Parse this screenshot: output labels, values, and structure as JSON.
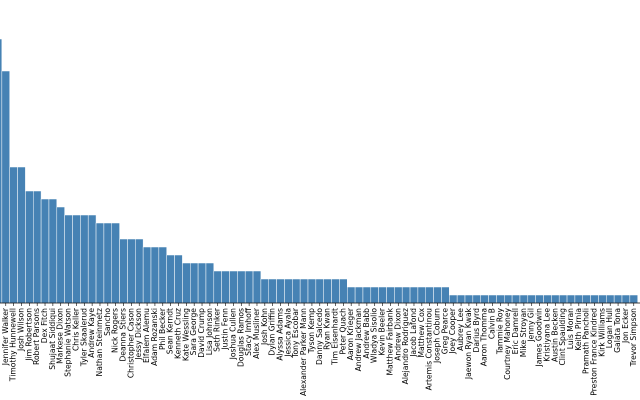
{
  "chart_data": {
    "type": "bar",
    "color": "#4682b4",
    "categories": [
      null,
      "Jennifer Walker",
      "Timothy Hunnewell",
      "Josh Wilson",
      "Jim Robertson",
      "Robert Parsons",
      "Dex Fitch",
      "Shujaat Siddiqui",
      "Markese Dixon",
      "Stephanie Watson",
      "Chris Keller",
      "Tyler Skaalerud",
      "Andrew Kaye",
      "Nathan Steinmetz",
      "Sancho",
      "Nick Rogers",
      "Deanna Stiers",
      "Christopher Cason",
      "Jessy Dickson",
      "Elfalem Alemu",
      "Adam Rozanski",
      "Phil Becker",
      "Sean Kerndt",
      "Kenneth Cruz",
      "Kate Wessling",
      "Sara George",
      "David Crump",
      "Lisa Johnson",
      "Seth Rinker",
      "Justin Fenn",
      "Joshua Cullen",
      "Douglas Ramos",
      "Stacy Imhoff",
      "Alex Musliner",
      "Josh Kohn",
      "Dylan Griffin",
      "Alyssa Adams",
      "Jessica Ayala",
      "Tony Escobar",
      "Alexander Parker Mann",
      "Tyson Kemp",
      "Danny Salcedo",
      "Ryan Kwan",
      "Tim Eisenhardt",
      "Peter Quach",
      "Aaron Krieger",
      "Andrew Jackman",
      "Andrew Babb",
      "Wladya Sisolio",
      "Kevin Beeler",
      "Matthew Fairbank",
      "Andrew Dixon",
      "Alejandro Rodriguez",
      "Jacob Lafond",
      "Matthew Cox",
      "Artemis Constantinou",
      "Joseph Coburn",
      "Greg Pearce",
      "Joey Cooper",
      "Aubrey Lee",
      "Jaewon Ryan Kwak",
      "Darius Byrd",
      "Aaron Thomma",
      "Calvin B",
      "Tammie Roy",
      "Courtney Mahoney",
      "Eric Damrell",
      "Mike Stroyan",
      "Jenny Gil",
      "James Goodwin",
      "Kristiyana Lee",
      "Austin Becken",
      "Clint Spaulding",
      "Luis Moran",
      "Keith Pirnia",
      "Pramath Pancholi",
      "Preston France Kindred",
      "Kirk Williams",
      "Logan Hull",
      "Galata Tona",
      "Jon Ecker",
      "Trevor Simpson"
    ],
    "values": [
      33,
      29,
      17,
      17,
      14,
      14,
      13,
      13,
      12,
      11,
      11,
      11,
      11,
      10,
      10,
      10,
      8,
      8,
      8,
      7,
      7,
      7,
      6,
      6,
      5,
      5,
      5,
      5,
      4,
      4,
      4,
      4,
      4,
      4,
      3,
      3,
      3,
      3,
      3,
      3,
      3,
      3,
      3,
      3,
      3,
      2,
      2,
      2,
      2,
      2,
      2,
      2,
      2,
      2,
      2,
      2,
      2,
      2,
      1,
      1,
      1,
      1,
      1,
      1,
      1,
      1,
      1,
      1,
      1,
      1,
      1,
      1,
      1,
      1,
      1,
      1,
      1,
      1,
      1,
      1,
      1,
      1
    ]
  }
}
